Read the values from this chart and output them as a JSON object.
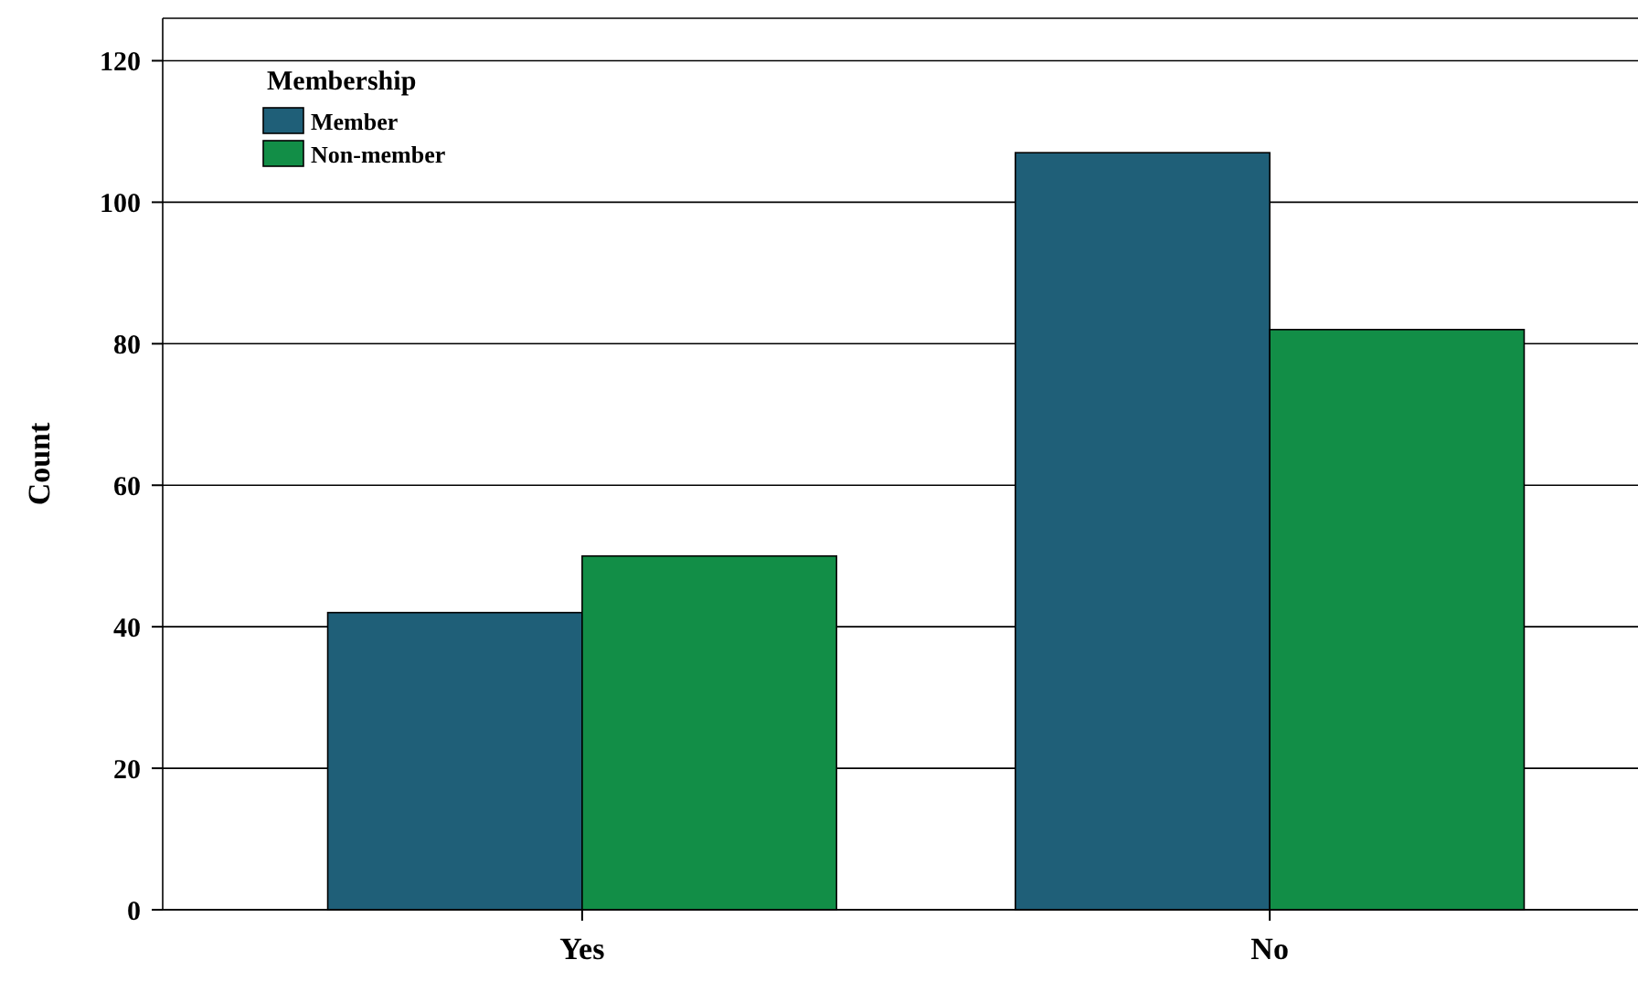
{
  "chart_data": {
    "type": "bar",
    "ylabel": "Count",
    "legend_title": "Membership",
    "categories": [
      "Yes",
      "No"
    ],
    "series": [
      {
        "name": "Member",
        "color": "#1f5f78",
        "values": [
          42,
          107
        ]
      },
      {
        "name": "Non-member",
        "color": "#128e47",
        "values": [
          50,
          82
        ]
      }
    ],
    "ylim": [
      0,
      126
    ],
    "yticks": [
      0,
      20,
      40,
      60,
      80,
      100,
      120
    ],
    "grid": "y",
    "legend": "top left"
  }
}
